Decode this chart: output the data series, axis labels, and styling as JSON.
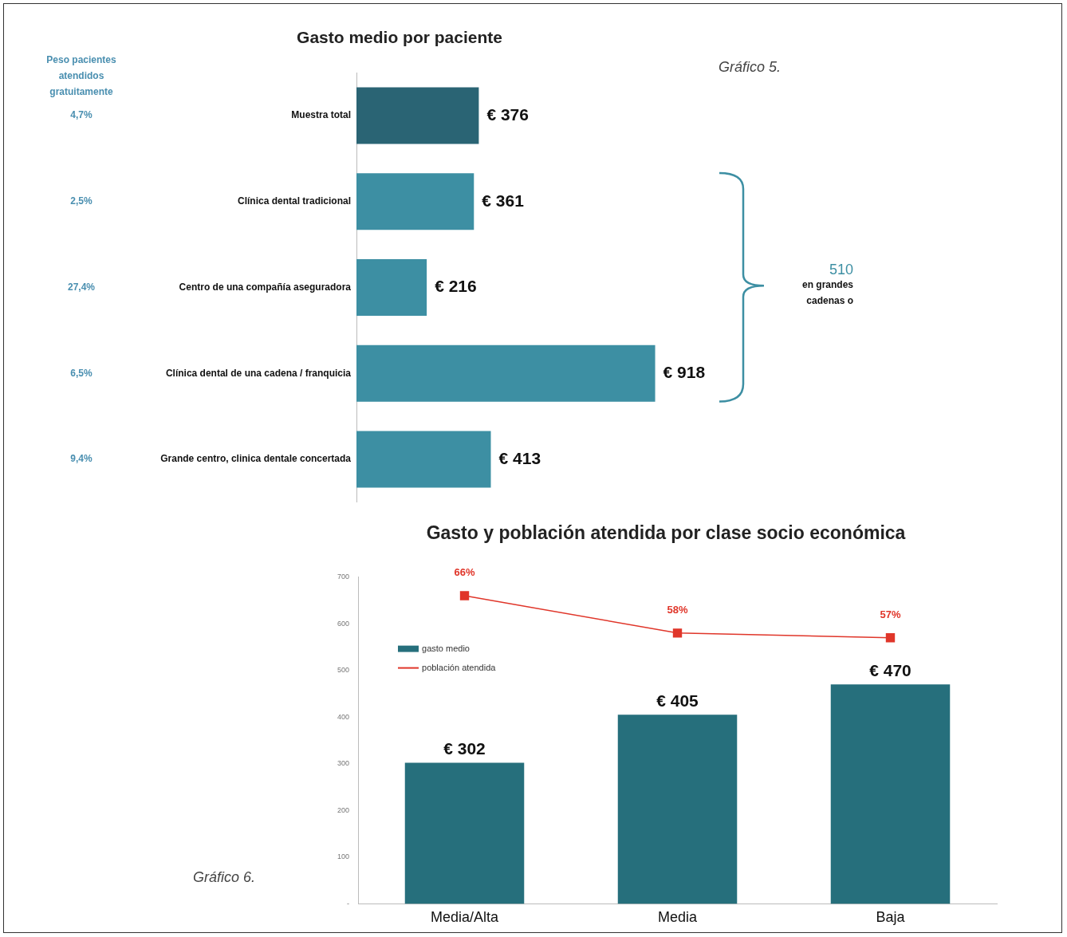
{
  "chart_data": [
    {
      "type": "bar",
      "orientation": "horizontal",
      "title": "Gasto medio por paciente",
      "categories": [
        "Muestra total",
        "Clínica dental tradicional",
        "Centro de una compañía aseguradora",
        "Clínica dental de una cadena / franquicia",
        "Grande centro, clinica dentale concertada"
      ],
      "values": [
        376,
        361,
        216,
        918,
        413
      ],
      "colors": [
        "#2a6474",
        "#3d8fa3",
        "#3d8fa3",
        "#3d8fa3",
        "#3d8fa3"
      ],
      "value_labels": [
        "€ 376",
        "€ 361",
        "€ 216",
        "€ 918",
        "€ 413"
      ],
      "tick_labels": "y",
      "annotations": [
        "Gráfico 5.",
        "Peso pacientes atendidos gratuitamente",
        "510",
        "en grandes cadenas o",
        "4,7%",
        "2,5%",
        "27,4%",
        "6,5%",
        "9,4%"
      ]
    },
    {
      "type": "bar",
      "title": "Gasto y población atendida por clase socio económica",
      "categories": [
        "Media/Alta",
        "Media",
        "Baja"
      ],
      "series": [
        {
          "name": "gasto medio",
          "color": "#266f7c",
          "values": [
            302,
            405,
            470
          ],
          "value_labels": [
            "€ 302",
            "€ 405",
            "€ 470"
          ]
        },
        {
          "name": "población atendida",
          "type": "line",
          "axis": "y2",
          "color": "#e0362a",
          "values": [
            66,
            58,
            57
          ],
          "value_labels": [
            "66%",
            "58%",
            "57%"
          ]
        }
      ],
      "ylim": [
        0,
        700
      ],
      "yticks": [
        {
          "value": 0,
          "label": "-"
        },
        100,
        200,
        300,
        400,
        500,
        600,
        700
      ],
      "y2lim": [
        0,
        70
      ],
      "legend": "top left",
      "marker": "square",
      "annotations": [
        "Gráfico 6."
      ]
    }
  ]
}
